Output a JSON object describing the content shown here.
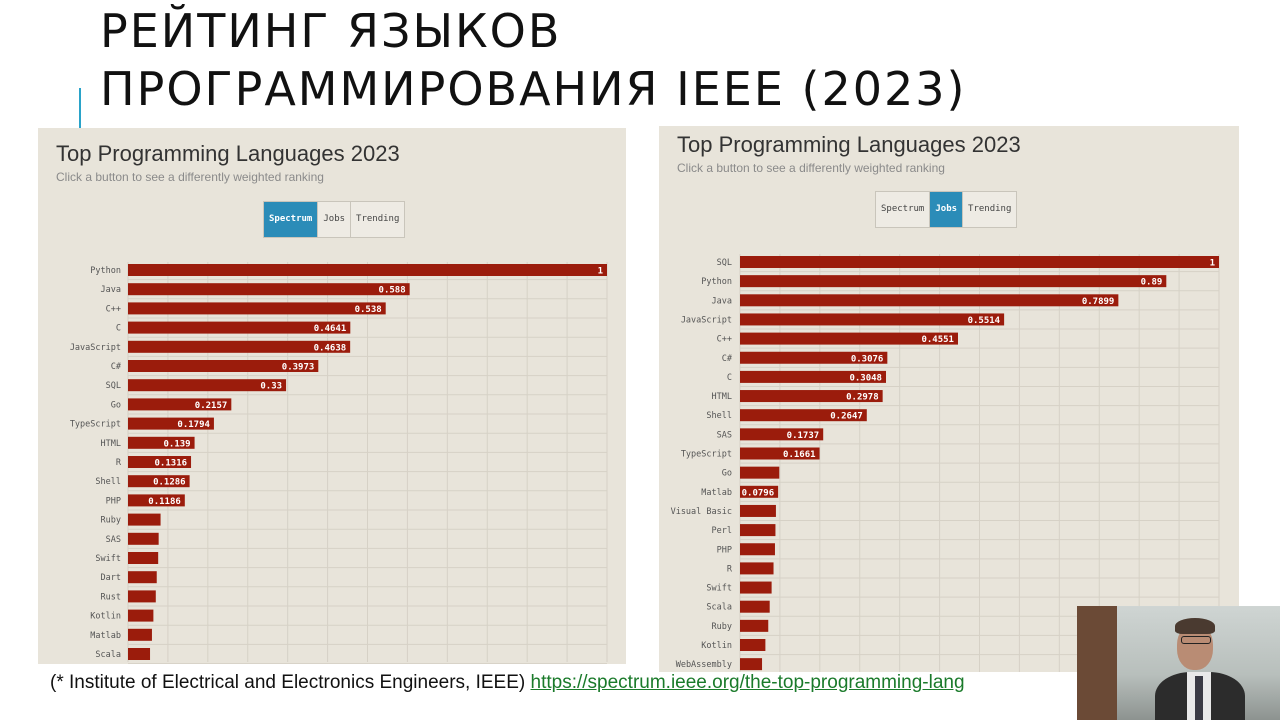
{
  "slide": {
    "title_line1": "РЕЙТИНГ ЯЗЫКОВ",
    "title_line2": "ПРОГРАММИРОВАНИЯ IEEE (2023)",
    "footnote_prefix": "(* Institute of Electrical and Electronics Engineers, IEEE) ",
    "footnote_link": "https://spectrum.ieee.org/the-top-programming-lang",
    "accent_color": "#2aa3c9"
  },
  "panels": [
    {
      "title": "Top Programming Languages 2023",
      "subtitle": "Click a button to see a differently weighted ranking",
      "buttons": [
        "Spectrum",
        "Jobs",
        "Trending"
      ],
      "active_button": "Spectrum"
    },
    {
      "title": "Top Programming Languages 2023",
      "subtitle": "Click a button to see a differently weighted ranking",
      "buttons": [
        "Spectrum",
        "Jobs",
        "Trending"
      ],
      "active_button": "Jobs"
    }
  ],
  "chart_data": [
    {
      "type": "bar",
      "orientation": "horizontal",
      "title": "Top Programming Languages 2023",
      "ranking": "Spectrum",
      "bar_color": "#9b1c0c",
      "xlim": [
        0,
        1
      ],
      "grid": true,
      "categories": [
        "Python",
        "Java",
        "C++",
        "C",
        "JavaScript",
        "C#",
        "SQL",
        "Go",
        "TypeScript",
        "HTML",
        "R",
        "Shell",
        "PHP",
        "Ruby",
        "SAS",
        "Swift",
        "Dart",
        "Rust",
        "Kotlin",
        "Matlab",
        "Scala"
      ],
      "values": [
        1,
        0.588,
        0.538,
        0.4641,
        0.4638,
        0.3973,
        0.33,
        0.2157,
        0.1794,
        0.139,
        0.1316,
        0.1286,
        0.1186,
        0.068,
        0.064,
        0.063,
        0.06,
        0.058,
        0.053,
        0.05,
        0.046
      ],
      "labels": [
        "1",
        "0.588",
        "0.538",
        "0.4641",
        "0.4638",
        "0.3973",
        "0.33",
        "0.2157",
        "0.1794",
        "0.139",
        "0.1316",
        "0.1286",
        "0.1186",
        "",
        "",
        "",
        "",
        "",
        "",
        "",
        ""
      ]
    },
    {
      "type": "bar",
      "orientation": "horizontal",
      "title": "Top Programming Languages 2023",
      "ranking": "Jobs",
      "bar_color": "#9b1c0c",
      "xlim": [
        0,
        1
      ],
      "grid": true,
      "categories": [
        "SQL",
        "Python",
        "Java",
        "JavaScript",
        "C++",
        "C#",
        "C",
        "HTML",
        "Shell",
        "SAS",
        "TypeScript",
        "Go",
        "Matlab",
        "Visual Basic",
        "Perl",
        "PHP",
        "R",
        "Swift",
        "Scala",
        "Ruby",
        "Kotlin",
        "WebAssembly"
      ],
      "values": [
        1,
        0.89,
        0.7899,
        0.5514,
        0.4551,
        0.3076,
        0.3048,
        0.2978,
        0.2647,
        0.1737,
        0.1661,
        0.082,
        0.0796,
        0.075,
        0.074,
        0.073,
        0.07,
        0.066,
        0.062,
        0.059,
        0.053,
        0.046
      ],
      "labels": [
        "1",
        "0.89",
        "0.7899",
        "0.5514",
        "0.4551",
        "0.3076",
        "0.3048",
        "0.2978",
        "0.2647",
        "0.1737",
        "0.1661",
        "",
        "0.0796",
        "",
        "",
        "",
        "",
        "",
        "",
        "",
        "",
        ""
      ]
    }
  ]
}
